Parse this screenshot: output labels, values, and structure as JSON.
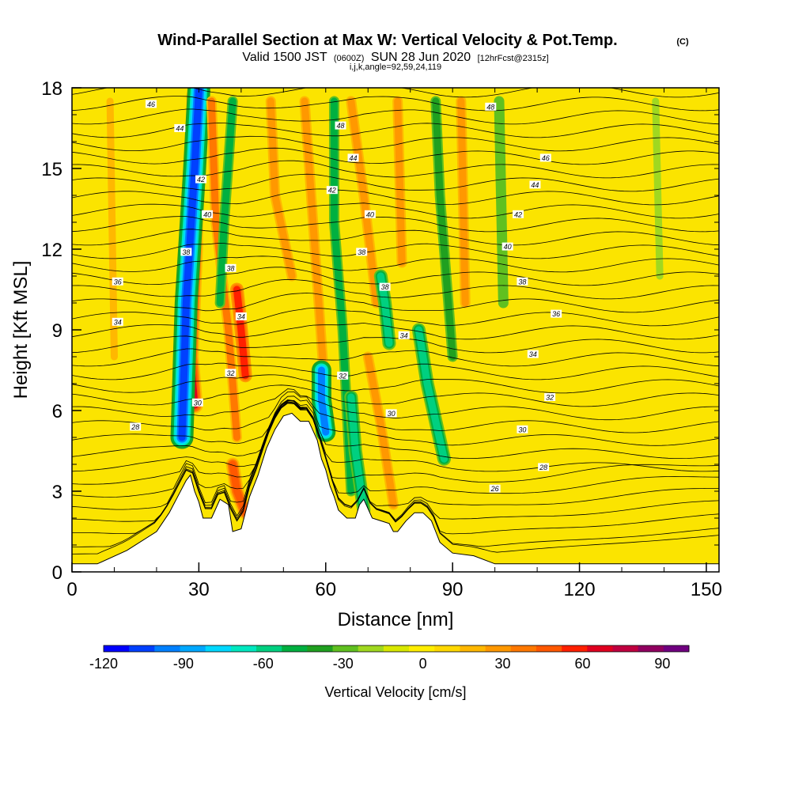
{
  "chart_data": {
    "type": "heatmap",
    "title": "Wind-Parallel Section at Max W: Vertical Velocity & Pot.Temp.",
    "title_mark": "(C)",
    "subtitle_parts": [
      "Valid 1500 JST",
      "(0600Z)",
      "SUN 28 Jun 2020",
      "[12hrFcst@2315z]"
    ],
    "subtitle2": "i,j,k,angle=92,59,24,119",
    "xlabel": "Distance [nm]",
    "ylabel": "Height [Kft MSL]",
    "xlim": [
      0,
      153
    ],
    "ylim": [
      0,
      18
    ],
    "xticks": [
      0,
      30,
      60,
      90,
      120,
      150
    ],
    "yticks": [
      0,
      3,
      6,
      9,
      12,
      15,
      18
    ],
    "grid": false,
    "colorbar": {
      "label": "Vertical Velocity [cm/s]",
      "range": [
        -120,
        100
      ],
      "step": 10,
      "ticks": [
        -120,
        -90,
        -60,
        -30,
        0,
        30,
        60,
        90
      ],
      "colors": [
        "#0000ff",
        "#0040ff",
        "#0080ff",
        "#00a8ff",
        "#00d8ff",
        "#00e8c0",
        "#00d080",
        "#00b040",
        "#20a020",
        "#60c020",
        "#a0d820",
        "#d8e800",
        "#ffee00",
        "#ffd800",
        "#ffb800",
        "#ff9800",
        "#ff7800",
        "#ff5800",
        "#ff2000",
        "#e00020",
        "#c00040",
        "#900060",
        "#700080"
      ]
    },
    "terrain_profile": {
      "x": [
        0,
        6,
        13,
        20,
        23,
        25,
        27,
        28,
        29,
        30,
        31,
        33,
        35,
        37,
        38,
        40,
        42,
        44,
        46,
        48,
        50,
        52,
        54,
        56,
        58,
        59,
        60,
        61,
        62,
        63,
        65,
        67,
        68,
        69,
        71,
        73,
        75,
        76,
        77,
        79,
        81,
        83,
        85,
        86,
        87,
        90,
        95,
        100,
        105,
        153
      ],
      "height": [
        0.3,
        0.3,
        0.8,
        1.5,
        2.2,
        2.8,
        3.4,
        3.6,
        3.0,
        2.6,
        2.0,
        2.0,
        2.7,
        2.5,
        1.5,
        1.6,
        2.8,
        3.6,
        4.6,
        5.3,
        5.8,
        5.9,
        5.6,
        5.6,
        4.9,
        4.2,
        3.8,
        3.2,
        2.8,
        2.3,
        2.0,
        2.0,
        2.5,
        2.7,
        2.0,
        1.9,
        1.8,
        1.5,
        1.5,
        1.9,
        2.2,
        2.2,
        1.9,
        1.5,
        1.1,
        0.7,
        0.6,
        0.3,
        0.3,
        0.3
      ]
    },
    "velocity_features": [
      {
        "x": [
          29,
          29,
          28,
          29
        ],
        "height": [
          17.7,
          12,
          8,
          6.2
        ],
        "w": 70
      },
      {
        "x": [
          30,
          29,
          27,
          26
        ],
        "height": [
          17.9,
          15,
          10,
          5.0
        ],
        "w": -110
      },
      {
        "x": [
          33,
          34,
          37,
          39
        ],
        "height": [
          17.5,
          13,
          9,
          5.0
        ],
        "w": 40
      },
      {
        "x": [
          39,
          40,
          41
        ],
        "height": [
          10.5,
          9,
          7.3
        ],
        "w": 65
      },
      {
        "x": [
          38,
          39,
          41
        ],
        "height": [
          4.0,
          3.0,
          2.2
        ],
        "w": 55
      },
      {
        "x": [
          38,
          36,
          35
        ],
        "height": [
          17.5,
          13,
          10
        ],
        "w": -45
      },
      {
        "x": [
          47,
          48,
          52
        ],
        "height": [
          17.5,
          14,
          11
        ],
        "w": 30
      },
      {
        "x": [
          55,
          57,
          60
        ],
        "height": [
          17.5,
          13,
          6.3
        ],
        "w": 35
      },
      {
        "x": [
          59,
          59,
          60
        ],
        "height": [
          7.5,
          6.4,
          5.2
        ],
        "w": -95
      },
      {
        "x": [
          62,
          62,
          64,
          66
        ],
        "height": [
          17.5,
          13,
          9,
          3.0
        ],
        "w": -45
      },
      {
        "x": [
          66,
          67,
          69
        ],
        "height": [
          6.5,
          4.5,
          2.3
        ],
        "w": -55
      },
      {
        "x": [
          66,
          69,
          72
        ],
        "height": [
          17.5,
          14,
          10
        ],
        "w": 30
      },
      {
        "x": [
          73,
          74,
          75
        ],
        "height": [
          11,
          10,
          8.5
        ],
        "w": -55
      },
      {
        "x": [
          70,
          73,
          76
        ],
        "height": [
          8,
          5.5,
          2.5
        ],
        "w": 30
      },
      {
        "x": [
          82,
          84,
          88
        ],
        "height": [
          9.0,
          7,
          4.2
        ],
        "w": -55
      },
      {
        "x": [
          77,
          78
        ],
        "height": [
          17.5,
          11.5
        ],
        "w": 35
      },
      {
        "x": [
          86,
          87,
          90
        ],
        "height": [
          17.5,
          14,
          8
        ],
        "w": -35
      },
      {
        "x": [
          92,
          93
        ],
        "height": [
          17.5,
          10
        ],
        "w": 30
      },
      {
        "x": [
          101,
          102
        ],
        "height": [
          17.5,
          10
        ],
        "w": -30
      },
      {
        "x": [
          138,
          139
        ],
        "height": [
          17.5,
          11
        ],
        "w": -20
      },
      {
        "x": [
          9,
          10
        ],
        "height": [
          17.5,
          8
        ],
        "w": 20
      }
    ],
    "contour_labels": [
      {
        "value": "46",
        "x": 18.7,
        "height": 17.4
      },
      {
        "value": "44",
        "x": 25.5,
        "height": 16.5
      },
      {
        "value": "42",
        "x": 30.5,
        "height": 14.6
      },
      {
        "value": "40",
        "x": 32.0,
        "height": 13.3
      },
      {
        "value": "38",
        "x": 27.0,
        "height": 11.9
      },
      {
        "value": "38",
        "x": 37.5,
        "height": 11.3
      },
      {
        "value": "36",
        "x": 10.8,
        "height": 10.8
      },
      {
        "value": "34",
        "x": 10.8,
        "height": 9.3
      },
      {
        "value": "34",
        "x": 40.0,
        "height": 9.5
      },
      {
        "value": "32",
        "x": 37.5,
        "height": 7.4
      },
      {
        "value": "30",
        "x": 29.7,
        "height": 6.3
      },
      {
        "value": "28",
        "x": 15.0,
        "height": 5.4
      },
      {
        "value": "48",
        "x": 63.5,
        "height": 16.6
      },
      {
        "value": "44",
        "x": 66.5,
        "height": 15.4
      },
      {
        "value": "42",
        "x": 61.5,
        "height": 14.2
      },
      {
        "value": "40",
        "x": 70.5,
        "height": 13.3
      },
      {
        "value": "38",
        "x": 68.5,
        "height": 11.9
      },
      {
        "value": "38",
        "x": 74.0,
        "height": 10.6
      },
      {
        "value": "34",
        "x": 78.5,
        "height": 8.8
      },
      {
        "value": "32",
        "x": 64.0,
        "height": 7.3
      },
      {
        "value": "30",
        "x": 75.5,
        "height": 5.9
      },
      {
        "value": "48",
        "x": 99.0,
        "height": 17.3
      },
      {
        "value": "46",
        "x": 112.0,
        "height": 15.4
      },
      {
        "value": "44",
        "x": 109.5,
        "height": 14.4
      },
      {
        "value": "42",
        "x": 105.5,
        "height": 13.3
      },
      {
        "value": "40",
        "x": 103.0,
        "height": 12.1
      },
      {
        "value": "38",
        "x": 106.5,
        "height": 10.8
      },
      {
        "value": "36",
        "x": 114.5,
        "height": 9.6
      },
      {
        "value": "34",
        "x": 109.0,
        "height": 8.1
      },
      {
        "value": "32",
        "x": 113.0,
        "height": 6.5
      },
      {
        "value": "30",
        "x": 106.5,
        "height": 5.3
      },
      {
        "value": "28",
        "x": 111.5,
        "height": 3.9
      },
      {
        "value": "26",
        "x": 100.0,
        "height": 3.1
      }
    ]
  }
}
